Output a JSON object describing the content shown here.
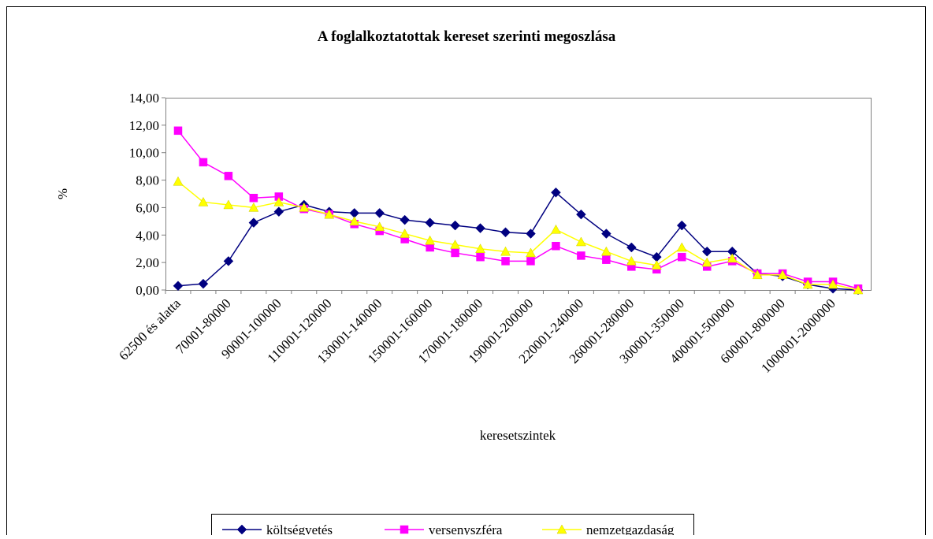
{
  "chart_data": {
    "type": "line",
    "title": "A foglalkoztatottak kereset szerinti megoszlása",
    "xlabel": "keresetszintek",
    "ylabel": "%",
    "categories": [
      "62500 és alatta",
      null,
      "70001-80000",
      null,
      "90001-100000",
      null,
      "110001-120000",
      null,
      "130001-140000",
      null,
      "150001-160000",
      null,
      "170001-180000",
      null,
      "190001-200000",
      null,
      "220001-240000",
      null,
      "260001-280000",
      null,
      "300001-350000",
      null,
      "400001-500000",
      null,
      "600001-800000",
      null,
      "1000001-2000000",
      null
    ],
    "series": [
      {
        "name": "költségvetés",
        "color": "#000080",
        "marker": "diamond",
        "values": [
          0.3,
          0.45,
          2.1,
          4.9,
          5.7,
          6.2,
          5.7,
          5.6,
          5.6,
          5.1,
          4.9,
          4.7,
          4.5,
          4.2,
          4.1,
          7.1,
          5.5,
          4.1,
          3.1,
          2.4,
          4.7,
          2.8,
          2.8,
          1.2,
          1.0,
          0.4,
          0.1,
          0.0
        ]
      },
      {
        "name": "versenyszféra",
        "color": "#ff00ff",
        "marker": "square",
        "values": [
          11.6,
          9.3,
          8.3,
          6.7,
          6.8,
          5.9,
          5.5,
          4.8,
          4.3,
          3.7,
          3.1,
          2.7,
          2.4,
          2.1,
          2.1,
          3.2,
          2.5,
          2.2,
          1.7,
          1.5,
          2.4,
          1.7,
          2.1,
          1.2,
          1.2,
          0.6,
          0.6,
          0.1
        ]
      },
      {
        "name": "nemzetgazdaság",
        "color": "#ffff00",
        "marker": "triangle",
        "values": [
          7.9,
          6.4,
          6.2,
          6.0,
          6.4,
          6.0,
          5.5,
          5.0,
          4.6,
          4.1,
          3.6,
          3.3,
          3.0,
          2.8,
          2.7,
          4.4,
          3.5,
          2.8,
          2.1,
          1.8,
          3.1,
          2.0,
          2.3,
          1.1,
          1.1,
          0.4,
          0.4,
          0.0
        ]
      }
    ],
    "ylim": [
      0,
      14
    ],
    "yticks": [
      {
        "value": 0,
        "label": "0,00"
      },
      {
        "value": 2,
        "label": "2,00"
      },
      {
        "value": 4,
        "label": "4,00"
      },
      {
        "value": 6,
        "label": "6,00"
      },
      {
        "value": 8,
        "label": "8,00"
      },
      {
        "value": 10,
        "label": "10,00"
      },
      {
        "value": 12,
        "label": "12,00"
      },
      {
        "value": 14,
        "label": "14,00"
      }
    ],
    "legend": "bottom"
  }
}
